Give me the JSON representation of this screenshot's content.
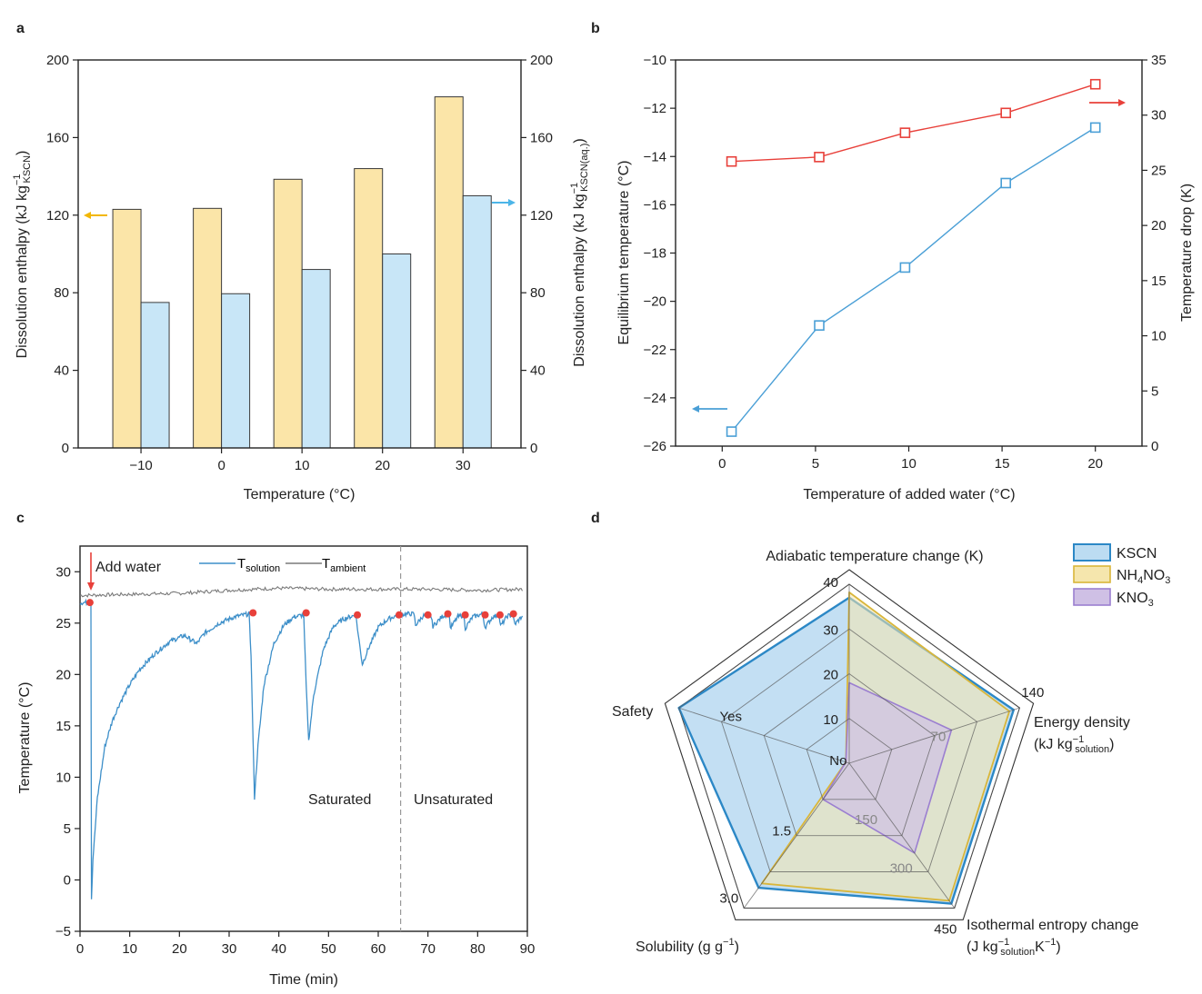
{
  "panels": {
    "a": "a",
    "b": "b",
    "c": "c",
    "d": "d"
  },
  "colors": {
    "bar_tan_fill": "#fbe5a8",
    "bar_tan_stroke": "#3a3a3a",
    "bar_blue_fill": "#c8e6f7",
    "bar_blue_stroke": "#3a3a3a",
    "arrow_orange": "#f2b705",
    "arrow_blue": "#4cb5e8",
    "line_red": "#e8403a",
    "line_blue": "#4a9fd6",
    "ambient": "#7a7a7a",
    "solution": "#3d8fc9",
    "kscn_fill": "#bcdcf2",
    "kscn_stroke": "#2c88c6",
    "nh4no3_fill": "#f5e6ad",
    "nh4no3_stroke": "#d9b63a",
    "kno3_fill": "#cfc0e5",
    "kno3_stroke": "#9b7fd0"
  },
  "chart_data": [
    {
      "panel": "a",
      "type": "bar",
      "categories": [
        "−10",
        "0",
        "10",
        "20",
        "30"
      ],
      "series": [
        {
          "name": "KSCN basis",
          "axis": "left",
          "values": [
            123,
            123.5,
            138.5,
            144,
            181
          ]
        },
        {
          "name": "KSCN(aq.) basis",
          "axis": "right",
          "values": [
            75,
            79.5,
            92,
            100,
            130
          ]
        }
      ],
      "xlabel": "Temperature (°C)",
      "ylabel_left": {
        "pre": "Dissolution enthalpy (kJ kg",
        "sup": "−1",
        "sub": "KSCN",
        "post": ")"
      },
      "ylabel_right": {
        "pre": "Dissolution enthalpy (kJ kg",
        "sup": "−1",
        "sub": "KSCN(aq.)",
        "post": ")"
      },
      "ylim": [
        0,
        200
      ],
      "yticks": [
        "0",
        "40",
        "80",
        "120",
        "160",
        "200"
      ],
      "yticks_right": [
        "0",
        "40",
        "80",
        "120",
        "160",
        "200"
      ]
    },
    {
      "panel": "b",
      "type": "line",
      "x": [
        0.5,
        5.2,
        9.8,
        15.2,
        20
      ],
      "series": [
        {
          "name": "Equilibrium temperature",
          "axis": "left",
          "values": [
            -25.4,
            -21,
            -18.6,
            -15.1,
            -12.8
          ]
        },
        {
          "name": "Temperature drop",
          "axis": "right",
          "values": [
            25.8,
            26.2,
            28.4,
            30.2,
            32.8
          ]
        }
      ],
      "xlabel": "Temperature of added water (°C)",
      "ylabel_left": "Equilibrium temperature (°C)",
      "ylabel_right": "Temperature drop (K)",
      "xlim": [
        -2.5,
        22.5
      ],
      "ylim_left": [
        -26,
        -10
      ],
      "ylim_right": [
        0,
        35
      ],
      "xticks": [
        "0",
        "5",
        "10",
        "15",
        "20"
      ],
      "yticks_left": [
        "−26",
        "−24",
        "−22",
        "−20",
        "−18",
        "−16",
        "−14",
        "−12",
        "−10"
      ],
      "yticks_right": [
        "0",
        "5",
        "10",
        "15",
        "20",
        "25",
        "30",
        "35"
      ]
    },
    {
      "panel": "c",
      "type": "line",
      "xlabel": "Time (min)",
      "ylabel": "Temperature (°C)",
      "xlim": [
        0,
        90
      ],
      "ylim": [
        -5,
        32.5
      ],
      "xticks": [
        "0",
        "10",
        "20",
        "30",
        "40",
        "50",
        "60",
        "70",
        "80",
        "90"
      ],
      "yticks": [
        "−5",
        "0",
        "5",
        "10",
        "15",
        "20",
        "25",
        "30"
      ],
      "legend": {
        "solution_main": "T",
        "solution_sub": "solution",
        "ambient_main": "T",
        "ambient_sub": "ambient"
      },
      "annotations": {
        "add_water": "Add water",
        "saturated": "Saturated",
        "unsaturated": "Unsaturated"
      },
      "divider_x": 64.5,
      "ambient": {
        "x": [
          0,
          10,
          20,
          30,
          40,
          50,
          60,
          70,
          80,
          89
        ],
        "y": [
          27.7,
          27.8,
          27.9,
          28.2,
          28.4,
          28.3,
          28.3,
          28.3,
          28.2,
          28.3
        ]
      },
      "solution_keypoints": {
        "x": [
          0,
          2.2,
          2.3,
          2.6,
          3.5,
          5,
          6.5,
          8,
          10,
          12,
          15,
          18,
          21,
          23.5,
          25,
          28,
          31,
          34,
          34.4,
          35.1,
          35.8,
          37,
          39,
          41,
          43,
          45,
          45.5,
          46,
          47,
          49,
          51,
          53,
          55.5,
          56,
          56.8,
          58,
          60,
          62,
          64,
          66,
          67.2,
          67.5,
          69,
          70.5,
          71,
          73,
          74.3,
          74.5,
          76,
          77.2,
          77.5,
          79,
          81,
          81.5,
          83,
          84.3,
          84.6,
          86,
          87,
          87.5,
          89
        ],
        "y": [
          27,
          27,
          -1.8,
          2,
          8,
          13,
          15.5,
          17.2,
          19,
          20.5,
          22,
          23.2,
          23.8,
          23,
          24,
          25,
          25.6,
          25.9,
          22,
          8,
          13,
          19,
          23,
          24.8,
          25.6,
          25.8,
          19,
          13.5,
          18,
          22.5,
          24.7,
          25.4,
          25.8,
          23.8,
          21,
          22.5,
          24.6,
          25.4,
          25.8,
          25.9,
          25.9,
          24.8,
          25.7,
          25.9,
          24.7,
          25.7,
          25.9,
          24.5,
          25.6,
          25.8,
          24.5,
          25.6,
          25.9,
          24.6,
          25.6,
          25.8,
          24.7,
          25.7,
          25.8,
          24.9,
          25.7
        ]
      },
      "markers": {
        "x": [
          2,
          34.8,
          45.5,
          55.8,
          64.2,
          70,
          74,
          77.5,
          81.5,
          84.5,
          87.2
        ],
        "y": [
          27,
          26,
          26,
          25.8,
          25.8,
          25.8,
          25.9,
          25.8,
          25.8,
          25.8,
          25.9
        ]
      }
    },
    {
      "panel": "d",
      "type": "radar",
      "axes": [
        {
          "label": "Adiabatic temperature change (K)",
          "ticks": [
            "10",
            "20",
            "30",
            "40"
          ]
        },
        {
          "label_main": "Energy density",
          "label_pre": "(kJ kg",
          "label_sup": "−1",
          "label_sub": "solution",
          "label_post": ")",
          "ticks": [
            "70",
            "140"
          ]
        },
        {
          "label_main": "Isothermal entropy change",
          "label_pre": "(J kg",
          "label_sup": "−1",
          "label_sub": "solution",
          "label_mid": "K",
          "label_sup2": "−1",
          "label_post": ")",
          "ticks": [
            "150",
            "300",
            "450"
          ]
        },
        {
          "label_pre": "Solubility (g g",
          "label_sup": "−1",
          "label_post": ")",
          "ticks": [
            "1.5",
            "3.0"
          ]
        },
        {
          "label": "Safety",
          "ticks": [
            "No",
            "Yes"
          ]
        }
      ],
      "series": [
        {
          "name": "KSCN",
          "values": [
            0.925,
            0.965,
            0.97,
            0.86,
            1.0
          ]
        },
        {
          "name_main": "NH",
          "name_sub1": "4",
          "name_mid": "NO",
          "name_sub2": "3",
          "values": [
            0.955,
            0.94,
            0.95,
            0.83,
            0.0
          ]
        },
        {
          "name_main": "KNO",
          "name_sub1": "3",
          "values": [
            0.45,
            0.6,
            0.62,
            0.25,
            0.0
          ]
        }
      ]
    }
  ]
}
